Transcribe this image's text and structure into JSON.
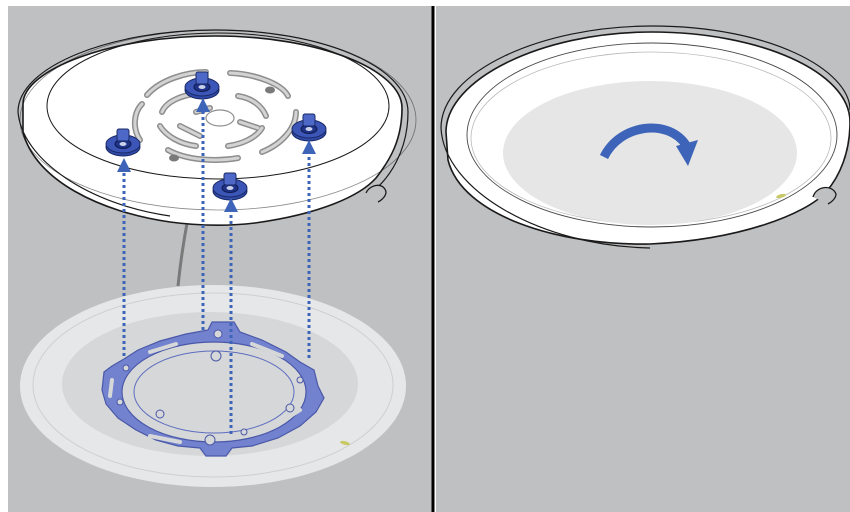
{
  "figure": {
    "panels": [
      {
        "id": "left",
        "step": "attach-bracket-to-access-point"
      },
      {
        "id": "right",
        "step": "rotate-to-lock"
      }
    ],
    "colors": {
      "background": "#bfc0c2",
      "divider": "#000000",
      "outline": "#1a1a1a",
      "device_face": "#ffffff",
      "device_center": "#e6e6e6",
      "bracket": "#6f7fd0",
      "screw": "#3c56b7",
      "arrow": "#3d64b8",
      "led": "#c8c864",
      "cable": "#7a7a7a"
    },
    "icons": [
      "rotate-clockwise-arrow-icon",
      "screw-icon",
      "dashed-up-arrow-icon",
      "led-indicator-icon"
    ],
    "screw_count": 4,
    "guide_arrow_count": 4
  }
}
